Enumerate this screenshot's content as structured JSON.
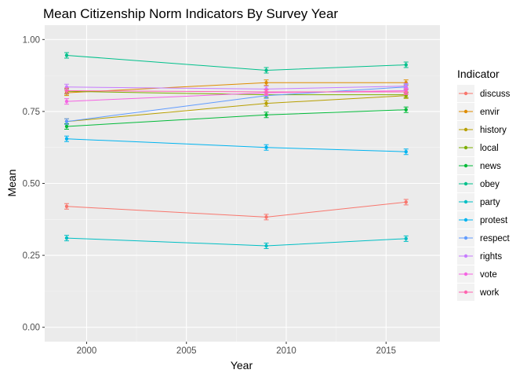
{
  "chart_data": {
    "type": "line",
    "title": "Mean Citizenship Norm Indicators By Survey Year",
    "xlabel": "Year",
    "ylabel": "Mean",
    "xlim": [
      1997.9,
      2017.7
    ],
    "ylim": [
      -0.05,
      1.05
    ],
    "x_ticks": [
      2000,
      2005,
      2010,
      2015
    ],
    "x_tick_labels": [
      "2000",
      "2005",
      "2010",
      "2015"
    ],
    "y_ticks": [
      0,
      0.25,
      0.5,
      0.75,
      1
    ],
    "y_tick_labels": [
      "0.00",
      "0.25",
      "0.50",
      "0.75",
      "1.00"
    ],
    "grid": true,
    "legend_title": "Indicator",
    "legend_position": "right",
    "x": [
      1999,
      2009,
      2016
    ],
    "series": [
      {
        "name": "discuss",
        "color": "#F8766D",
        "values": [
          0.42,
          0.383,
          0.435
        ]
      },
      {
        "name": "envir",
        "color": "#DE8C00",
        "values": [
          0.815,
          0.85,
          0.85
        ]
      },
      {
        "name": "history",
        "color": "#B79F00",
        "values": [
          0.715,
          0.778,
          0.805
        ]
      },
      {
        "name": "local",
        "color": "#7CAE00",
        "values": [
          0.82,
          0.808,
          0.808
        ]
      },
      {
        "name": "news",
        "color": "#00BA38",
        "values": [
          0.698,
          0.738,
          0.756
        ]
      },
      {
        "name": "obey",
        "color": "#00C08B",
        "values": [
          0.945,
          0.893,
          0.912
        ]
      },
      {
        "name": "party",
        "color": "#00BFC4",
        "values": [
          0.31,
          0.283,
          0.308
        ]
      },
      {
        "name": "protest",
        "color": "#00B4F0",
        "values": [
          0.655,
          0.625,
          0.61
        ]
      },
      {
        "name": "respect",
        "color": "#619CFF",
        "values": [
          0.715,
          0.805,
          0.835
        ]
      },
      {
        "name": "rights",
        "color": "#C77CFF",
        "values": [
          0.835,
          0.828,
          0.838
        ]
      },
      {
        "name": "vote",
        "color": "#F564E3",
        "values": [
          0.785,
          0.815,
          0.822
        ]
      },
      {
        "name": "work",
        "color": "#FF64B0",
        "values": [
          0.822,
          0.818,
          0.818
        ]
      }
    ]
  }
}
